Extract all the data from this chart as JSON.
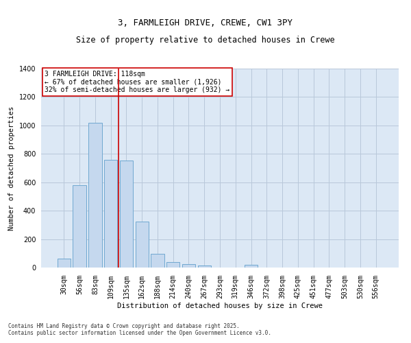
{
  "title": "3, FARMLEIGH DRIVE, CREWE, CW1 3PY",
  "subtitle": "Size of property relative to detached houses in Crewe",
  "xlabel": "Distribution of detached houses by size in Crewe",
  "ylabel": "Number of detached properties",
  "categories": [
    "30sqm",
    "56sqm",
    "83sqm",
    "109sqm",
    "135sqm",
    "162sqm",
    "188sqm",
    "214sqm",
    "240sqm",
    "267sqm",
    "293sqm",
    "319sqm",
    "346sqm",
    "372sqm",
    "398sqm",
    "425sqm",
    "451sqm",
    "477sqm",
    "503sqm",
    "530sqm",
    "556sqm"
  ],
  "values": [
    65,
    578,
    1020,
    760,
    755,
    325,
    95,
    38,
    25,
    15,
    0,
    0,
    20,
    0,
    0,
    0,
    0,
    0,
    0,
    0,
    0
  ],
  "bar_color": "#c5d8ee",
  "bar_edge_color": "#6fa8d0",
  "bg_color": "#dce8f5",
  "grid_color": "#b8c8da",
  "vline_color": "#cc0000",
  "vline_x_index": 3.5,
  "annotation_text": "3 FARMLEIGH DRIVE: 118sqm\n← 67% of detached houses are smaller (1,926)\n32% of semi-detached houses are larger (932) →",
  "annotation_box_color": "white",
  "annotation_box_edge": "#cc0000",
  "footer_text": "Contains HM Land Registry data © Crown copyright and database right 2025.\nContains public sector information licensed under the Open Government Licence v3.0.",
  "ylim": [
    0,
    1400
  ],
  "yticks": [
    0,
    200,
    400,
    600,
    800,
    1000,
    1200,
    1400
  ],
  "title_fontsize": 9,
  "subtitle_fontsize": 8.5,
  "axis_label_fontsize": 7.5,
  "tick_fontsize": 7,
  "annotation_fontsize": 7,
  "footer_fontsize": 5.5
}
